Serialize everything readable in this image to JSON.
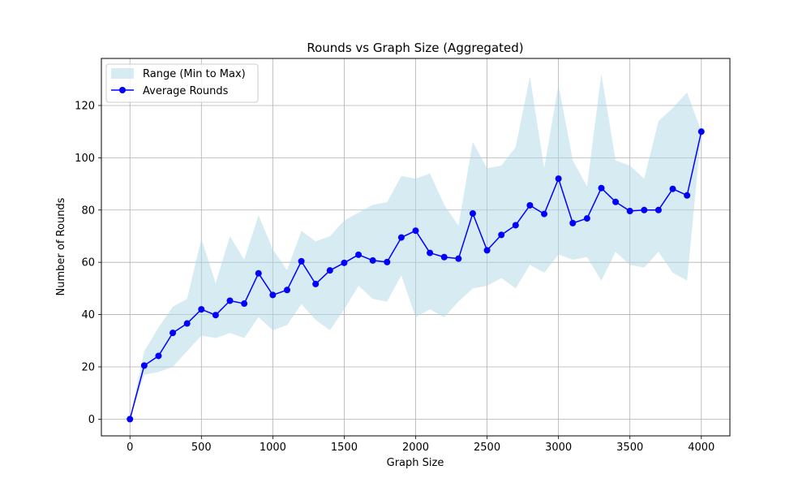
{
  "chart_data": {
    "type": "line",
    "title": "Rounds vs Graph Size (Aggregated)",
    "xlabel": "Graph Size",
    "ylabel": "Number of Rounds",
    "xlim": [
      -200,
      4200
    ],
    "ylim": [
      -6.4,
      138
    ],
    "xticks": [
      0,
      500,
      1000,
      1500,
      2000,
      2500,
      3000,
      3500,
      4000
    ],
    "yticks": [
      0,
      20,
      40,
      60,
      80,
      100,
      120
    ],
    "grid": true,
    "legend_position": "top-left",
    "x": [
      0,
      100,
      200,
      300,
      400,
      500,
      600,
      700,
      800,
      900,
      1000,
      1100,
      1200,
      1300,
      1400,
      1500,
      1600,
      1700,
      1800,
      1900,
      2000,
      2100,
      2200,
      2300,
      2400,
      2500,
      2600,
      2700,
      2800,
      2900,
      3000,
      3100,
      3200,
      3300,
      3400,
      3500,
      3600,
      3700,
      3800,
      3900,
      4000
    ],
    "series": [
      {
        "name": "Range (Min to Max)",
        "kind": "fill_between",
        "color": "#add8e6",
        "min": [
          0,
          17,
          18,
          20,
          26,
          32,
          31,
          33,
          31,
          39,
          34,
          36,
          44,
          38,
          34,
          42,
          51,
          46,
          45,
          55,
          39,
          42,
          39,
          45,
          50,
          51,
          54,
          50,
          59,
          56,
          63,
          61,
          62,
          53,
          64,
          59,
          58,
          64,
          56,
          53,
          110
        ],
        "max": [
          0,
          26,
          35,
          43,
          46,
          69,
          52,
          70,
          61,
          78,
          65,
          57,
          72,
          68,
          70,
          76,
          79,
          82,
          83,
          93,
          92,
          94,
          82,
          74,
          106,
          96,
          97,
          104,
          131,
          96,
          128,
          99,
          89,
          132,
          99,
          97,
          92,
          114,
          119,
          125,
          110
        ]
      },
      {
        "name": "Average Rounds",
        "kind": "line",
        "color": "#0000ff",
        "values": [
          0,
          20.5,
          24.2,
          33,
          36.6,
          42,
          39.8,
          45.3,
          44.2,
          55.8,
          47.5,
          49.4,
          60.4,
          51.7,
          56.9,
          59.8,
          62.9,
          60.7,
          60.1,
          69.5,
          72.1,
          63.6,
          62,
          61.4,
          78.7,
          64.6,
          70.5,
          74.2,
          81.8,
          78.5,
          92,
          75,
          76.8,
          88.4,
          83.1,
          79.6,
          80,
          80,
          88.1,
          85.6,
          110
        ]
      }
    ]
  }
}
